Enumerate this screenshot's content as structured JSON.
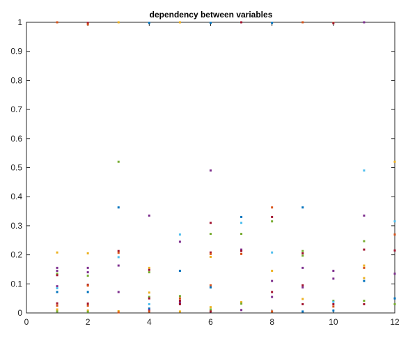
{
  "chart_data": {
    "type": "scatter",
    "title": "dependency between variables",
    "xlabel": "",
    "ylabel": "",
    "xlim": [
      0,
      12
    ],
    "ylim": [
      0,
      1
    ],
    "xticks": [
      0,
      2,
      4,
      6,
      8,
      10,
      12
    ],
    "yticks": [
      0,
      0.1,
      0.2,
      0.3,
      0.4,
      0.5,
      0.6,
      0.7,
      0.8,
      0.9,
      1
    ],
    "ytick_labels": [
      "0",
      "0.1",
      "0.2",
      "0.3",
      "0.4",
      "0.5",
      "0.6",
      "0.7",
      "0.8",
      "0.9",
      "1"
    ],
    "grid": false,
    "colors": {
      "blue": "#0072BD",
      "orange": "#D95319",
      "yellow": "#EDB120",
      "purple": "#7E2F8E",
      "green": "#77AC30",
      "cyan": "#4DBEEE",
      "red": "#A2142F"
    },
    "points": [
      {
        "x": 1,
        "y": 1.0,
        "c": "orange"
      },
      {
        "x": 1,
        "y": 0.208,
        "c": "yellow"
      },
      {
        "x": 1,
        "y": 0.155,
        "c": "purple"
      },
      {
        "x": 1,
        "y": 0.145,
        "c": "purple"
      },
      {
        "x": 1,
        "y": 0.135,
        "c": "green"
      },
      {
        "x": 1,
        "y": 0.13,
        "c": "red"
      },
      {
        "x": 1,
        "y": 0.092,
        "c": "purple"
      },
      {
        "x": 1,
        "y": 0.085,
        "c": "cyan"
      },
      {
        "x": 1,
        "y": 0.072,
        "c": "blue"
      },
      {
        "x": 1,
        "y": 0.033,
        "c": "red"
      },
      {
        "x": 1,
        "y": 0.025,
        "c": "orange"
      },
      {
        "x": 1,
        "y": 0.012,
        "c": "yellow"
      },
      {
        "x": 1,
        "y": 0.005,
        "c": "green"
      },
      {
        "x": 2,
        "y": 0.998,
        "c": "red"
      },
      {
        "x": 2,
        "y": 0.993,
        "c": "orange"
      },
      {
        "x": 2,
        "y": 0.205,
        "c": "yellow"
      },
      {
        "x": 2,
        "y": 0.155,
        "c": "purple"
      },
      {
        "x": 2,
        "y": 0.14,
        "c": "purple"
      },
      {
        "x": 2,
        "y": 0.128,
        "c": "green"
      },
      {
        "x": 2,
        "y": 0.097,
        "c": "red"
      },
      {
        "x": 2,
        "y": 0.094,
        "c": "orange"
      },
      {
        "x": 2,
        "y": 0.072,
        "c": "blue"
      },
      {
        "x": 2,
        "y": 0.032,
        "c": "red"
      },
      {
        "x": 2,
        "y": 0.025,
        "c": "orange"
      },
      {
        "x": 2,
        "y": 0.008,
        "c": "yellow"
      },
      {
        "x": 2,
        "y": 0.004,
        "c": "green"
      },
      {
        "x": 3,
        "y": 1.0,
        "c": "yellow"
      },
      {
        "x": 3,
        "y": 0.52,
        "c": "green"
      },
      {
        "x": 3,
        "y": 0.363,
        "c": "blue"
      },
      {
        "x": 3,
        "y": 0.213,
        "c": "red"
      },
      {
        "x": 3,
        "y": 0.207,
        "c": "orange"
      },
      {
        "x": 3,
        "y": 0.192,
        "c": "cyan"
      },
      {
        "x": 3,
        "y": 0.163,
        "c": "purple"
      },
      {
        "x": 3,
        "y": 0.072,
        "c": "purple"
      },
      {
        "x": 3,
        "y": 0.006,
        "c": "yellow"
      },
      {
        "x": 3,
        "y": 0.002,
        "c": "orange"
      },
      {
        "x": 4,
        "y": 0.998,
        "c": "blue"
      },
      {
        "x": 4,
        "y": 0.335,
        "c": "purple"
      },
      {
        "x": 4,
        "y": 0.155,
        "c": "yellow"
      },
      {
        "x": 4,
        "y": 0.148,
        "c": "red"
      },
      {
        "x": 4,
        "y": 0.14,
        "c": "green"
      },
      {
        "x": 4,
        "y": 0.07,
        "c": "yellow"
      },
      {
        "x": 4,
        "y": 0.055,
        "c": "green"
      },
      {
        "x": 4,
        "y": 0.05,
        "c": "red"
      },
      {
        "x": 4,
        "y": 0.03,
        "c": "cyan"
      },
      {
        "x": 4,
        "y": 0.015,
        "c": "blue"
      },
      {
        "x": 4,
        "y": 0.01,
        "c": "purple"
      },
      {
        "x": 4,
        "y": 0.005,
        "c": "orange"
      },
      {
        "x": 5,
        "y": 1.0,
        "c": "yellow"
      },
      {
        "x": 5,
        "y": 0.27,
        "c": "cyan"
      },
      {
        "x": 5,
        "y": 0.245,
        "c": "purple"
      },
      {
        "x": 5,
        "y": 0.145,
        "c": "blue"
      },
      {
        "x": 5,
        "y": 0.058,
        "c": "green"
      },
      {
        "x": 5,
        "y": 0.05,
        "c": "orange"
      },
      {
        "x": 5,
        "y": 0.042,
        "c": "red"
      },
      {
        "x": 5,
        "y": 0.035,
        "c": "purple"
      },
      {
        "x": 5,
        "y": 0.03,
        "c": "red"
      },
      {
        "x": 5,
        "y": 0.005,
        "c": "yellow"
      },
      {
        "x": 6,
        "y": 0.998,
        "c": "blue"
      },
      {
        "x": 6,
        "y": 0.49,
        "c": "purple"
      },
      {
        "x": 6,
        "y": 0.31,
        "c": "red"
      },
      {
        "x": 6,
        "y": 0.272,
        "c": "green"
      },
      {
        "x": 6,
        "y": 0.208,
        "c": "red"
      },
      {
        "x": 6,
        "y": 0.203,
        "c": "orange"
      },
      {
        "x": 6,
        "y": 0.193,
        "c": "yellow"
      },
      {
        "x": 6,
        "y": 0.095,
        "c": "orange"
      },
      {
        "x": 6,
        "y": 0.088,
        "c": "blue"
      },
      {
        "x": 6,
        "y": 0.02,
        "c": "yellow"
      },
      {
        "x": 6,
        "y": 0.012,
        "c": "green"
      },
      {
        "x": 6,
        "y": 0.005,
        "c": "red"
      },
      {
        "x": 7,
        "y": 1.0,
        "c": "red"
      },
      {
        "x": 7,
        "y": 0.33,
        "c": "blue"
      },
      {
        "x": 7,
        "y": 0.31,
        "c": "cyan"
      },
      {
        "x": 7,
        "y": 0.272,
        "c": "green"
      },
      {
        "x": 7,
        "y": 0.218,
        "c": "purple"
      },
      {
        "x": 7,
        "y": 0.213,
        "c": "red"
      },
      {
        "x": 7,
        "y": 0.203,
        "c": "orange"
      },
      {
        "x": 7,
        "y": 0.037,
        "c": "yellow"
      },
      {
        "x": 7,
        "y": 0.032,
        "c": "green"
      },
      {
        "x": 7,
        "y": 0.01,
        "c": "purple"
      },
      {
        "x": 8,
        "y": 0.998,
        "c": "blue"
      },
      {
        "x": 8,
        "y": 0.363,
        "c": "orange"
      },
      {
        "x": 8,
        "y": 0.33,
        "c": "red"
      },
      {
        "x": 8,
        "y": 0.315,
        "c": "green"
      },
      {
        "x": 8,
        "y": 0.208,
        "c": "cyan"
      },
      {
        "x": 8,
        "y": 0.145,
        "c": "yellow"
      },
      {
        "x": 8,
        "y": 0.11,
        "c": "purple"
      },
      {
        "x": 8,
        "y": 0.072,
        "c": "red"
      },
      {
        "x": 8,
        "y": 0.055,
        "c": "purple"
      },
      {
        "x": 8,
        "y": 0.005,
        "c": "orange"
      },
      {
        "x": 9,
        "y": 1.0,
        "c": "orange"
      },
      {
        "x": 9,
        "y": 0.363,
        "c": "blue"
      },
      {
        "x": 9,
        "y": 0.213,
        "c": "green"
      },
      {
        "x": 9,
        "y": 0.205,
        "c": "red"
      },
      {
        "x": 9,
        "y": 0.197,
        "c": "green"
      },
      {
        "x": 9,
        "y": 0.155,
        "c": "purple"
      },
      {
        "x": 9,
        "y": 0.095,
        "c": "red"
      },
      {
        "x": 9,
        "y": 0.088,
        "c": "purple"
      },
      {
        "x": 9,
        "y": 0.048,
        "c": "yellow"
      },
      {
        "x": 9,
        "y": 0.03,
        "c": "red"
      },
      {
        "x": 9,
        "y": 0.005,
        "c": "blue"
      },
      {
        "x": 10,
        "y": 0.998,
        "c": "yellow"
      },
      {
        "x": 10,
        "y": 0.997,
        "c": "red"
      },
      {
        "x": 10,
        "y": 0.145,
        "c": "purple"
      },
      {
        "x": 10,
        "y": 0.118,
        "c": "purple"
      },
      {
        "x": 10,
        "y": 0.042,
        "c": "green"
      },
      {
        "x": 10,
        "y": 0.038,
        "c": "cyan"
      },
      {
        "x": 10,
        "y": 0.03,
        "c": "red"
      },
      {
        "x": 10,
        "y": 0.022,
        "c": "orange"
      },
      {
        "x": 10,
        "y": 0.008,
        "c": "blue"
      },
      {
        "x": 11,
        "y": 1.0,
        "c": "purple"
      },
      {
        "x": 11,
        "y": 0.49,
        "c": "cyan"
      },
      {
        "x": 11,
        "y": 0.335,
        "c": "purple"
      },
      {
        "x": 11,
        "y": 0.247,
        "c": "green"
      },
      {
        "x": 11,
        "y": 0.218,
        "c": "red"
      },
      {
        "x": 11,
        "y": 0.163,
        "c": "yellow"
      },
      {
        "x": 11,
        "y": 0.155,
        "c": "orange"
      },
      {
        "x": 11,
        "y": 0.12,
        "c": "yellow"
      },
      {
        "x": 11,
        "y": 0.11,
        "c": "blue"
      },
      {
        "x": 11,
        "y": 0.042,
        "c": "green"
      },
      {
        "x": 11,
        "y": 0.03,
        "c": "red"
      },
      {
        "x": 12,
        "y": 0.52,
        "c": "yellow"
      },
      {
        "x": 12,
        "y": 0.315,
        "c": "cyan"
      },
      {
        "x": 12,
        "y": 0.27,
        "c": "orange"
      },
      {
        "x": 12,
        "y": 0.215,
        "c": "red"
      },
      {
        "x": 12,
        "y": 0.135,
        "c": "purple"
      },
      {
        "x": 12,
        "y": 0.05,
        "c": "blue"
      },
      {
        "x": 12,
        "y": 0.03,
        "c": "green"
      }
    ]
  }
}
